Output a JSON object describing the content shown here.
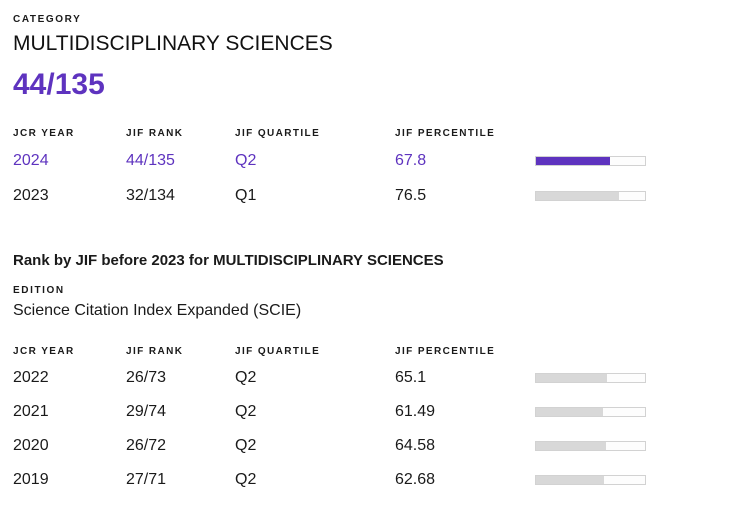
{
  "colors": {
    "accent_purple": "#5E33BF",
    "bar_gray": "#d8d8d8",
    "bar_track_border": "#d2d2d2",
    "text": "#1a1a1a"
  },
  "header": {
    "category_label": "CATEGORY",
    "category_name": "MULTIDISCIPLINARY SCIENCES",
    "rank_headline": "44/135"
  },
  "current_table": {
    "headers": [
      "JCR YEAR",
      "JIF RANK",
      "JIF QUARTILE",
      "JIF PERCENTILE"
    ],
    "rows": [
      {
        "year": "2024",
        "rank": "44/135",
        "quartile": "Q2",
        "percentile": "67.8"
      },
      {
        "year": "2023",
        "rank": "32/134",
        "quartile": "Q1",
        "percentile": "76.5"
      }
    ]
  },
  "history_section": {
    "title": "Rank by JIF before 2023 for MULTIDISCIPLINARY SCIENCES",
    "edition_label": "EDITION",
    "edition_value": "Science Citation Index Expanded (SCIE)",
    "headers": [
      "JCR YEAR",
      "JIF RANK",
      "JIF QUARTILE",
      "JIF PERCENTILE"
    ],
    "rows": [
      {
        "year": "2022",
        "rank": "26/73",
        "quartile": "Q2",
        "percentile": "65.1"
      },
      {
        "year": "2021",
        "rank": "29/74",
        "quartile": "Q2",
        "percentile": "61.49"
      },
      {
        "year": "2020",
        "rank": "26/72",
        "quartile": "Q2",
        "percentile": "64.58"
      },
      {
        "year": "2019",
        "rank": "27/71",
        "quartile": "Q2",
        "percentile": "62.68"
      }
    ]
  }
}
